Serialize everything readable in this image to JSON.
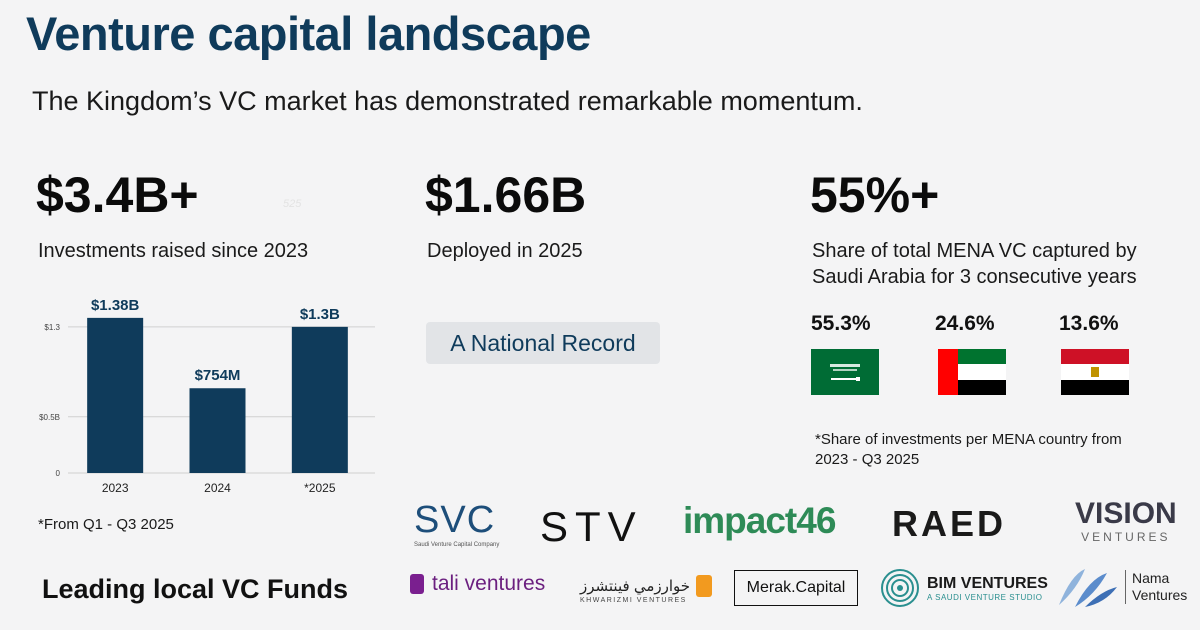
{
  "header": {
    "title": "Venture capital landscape",
    "subtitle": "The Kingdom’s VC market has demonstrated remarkable momentum."
  },
  "stats": [
    {
      "value": "$3.4B+",
      "caption": "Investments raised since 2023"
    },
    {
      "value": "$1.66B",
      "caption": "Deployed in 2025"
    },
    {
      "value": "55%+",
      "caption_line1": "Share of total MENA VC captured by",
      "caption_line2": "Saudi Arabia for 3 consecutive years"
    }
  ],
  "ghost_text": "525",
  "badge": "A National Record",
  "shares": [
    {
      "value": "55.3%",
      "country": "Saudi Arabia"
    },
    {
      "value": "24.6%",
      "country": "UAE"
    },
    {
      "value": "13.6%",
      "country": "Egypt"
    }
  ],
  "shares_note_line1": "*Share of investments per MENA country from",
  "shares_note_line2": "2023 - Q3 2025",
  "chart_note": "*From Q1 - Q3 2025",
  "funds_title": "Leading local VC Funds",
  "logos": {
    "svc": "SVC",
    "svc_sub": "Saudi Venture Capital Company",
    "stv": "STV",
    "impact": "impact46",
    "raed": "RAED",
    "vision": "VISION",
    "vision_sub": "VENTURES",
    "tali": "tali ventures",
    "khwarizmi": "KHWARIZMI VENTURES",
    "merak": "Merak.Capital",
    "bim": "BIM VENTURES",
    "bim_sub": "A SAUDI VENTURE STUDIO",
    "nama": "Nama",
    "nama_sub": "Ventures"
  },
  "colors": {
    "title": "#0f3b5b",
    "bar": "#0f3b5b",
    "saudi_green": "#006c35",
    "uae_red": "#ff0000",
    "uae_green": "#00732f",
    "egypt_red": "#ce1126",
    "impact_green": "#2e8b57",
    "tali_purple": "#7a1f8f"
  },
  "chart_data": {
    "type": "bar",
    "categories": [
      "2023",
      "2024",
      "*2025"
    ],
    "values": [
      1.38,
      0.754,
      1.3
    ],
    "data_labels": [
      "$1.38B",
      "$754M",
      "$1.3B"
    ],
    "yticks": [
      0,
      0.5,
      1.3
    ],
    "ytick_labels": [
      "0",
      "$0.5B",
      "$1.3"
    ],
    "ylim": [
      0,
      1.45
    ],
    "grid": true,
    "title": "",
    "xlabel": "",
    "ylabel": ""
  }
}
